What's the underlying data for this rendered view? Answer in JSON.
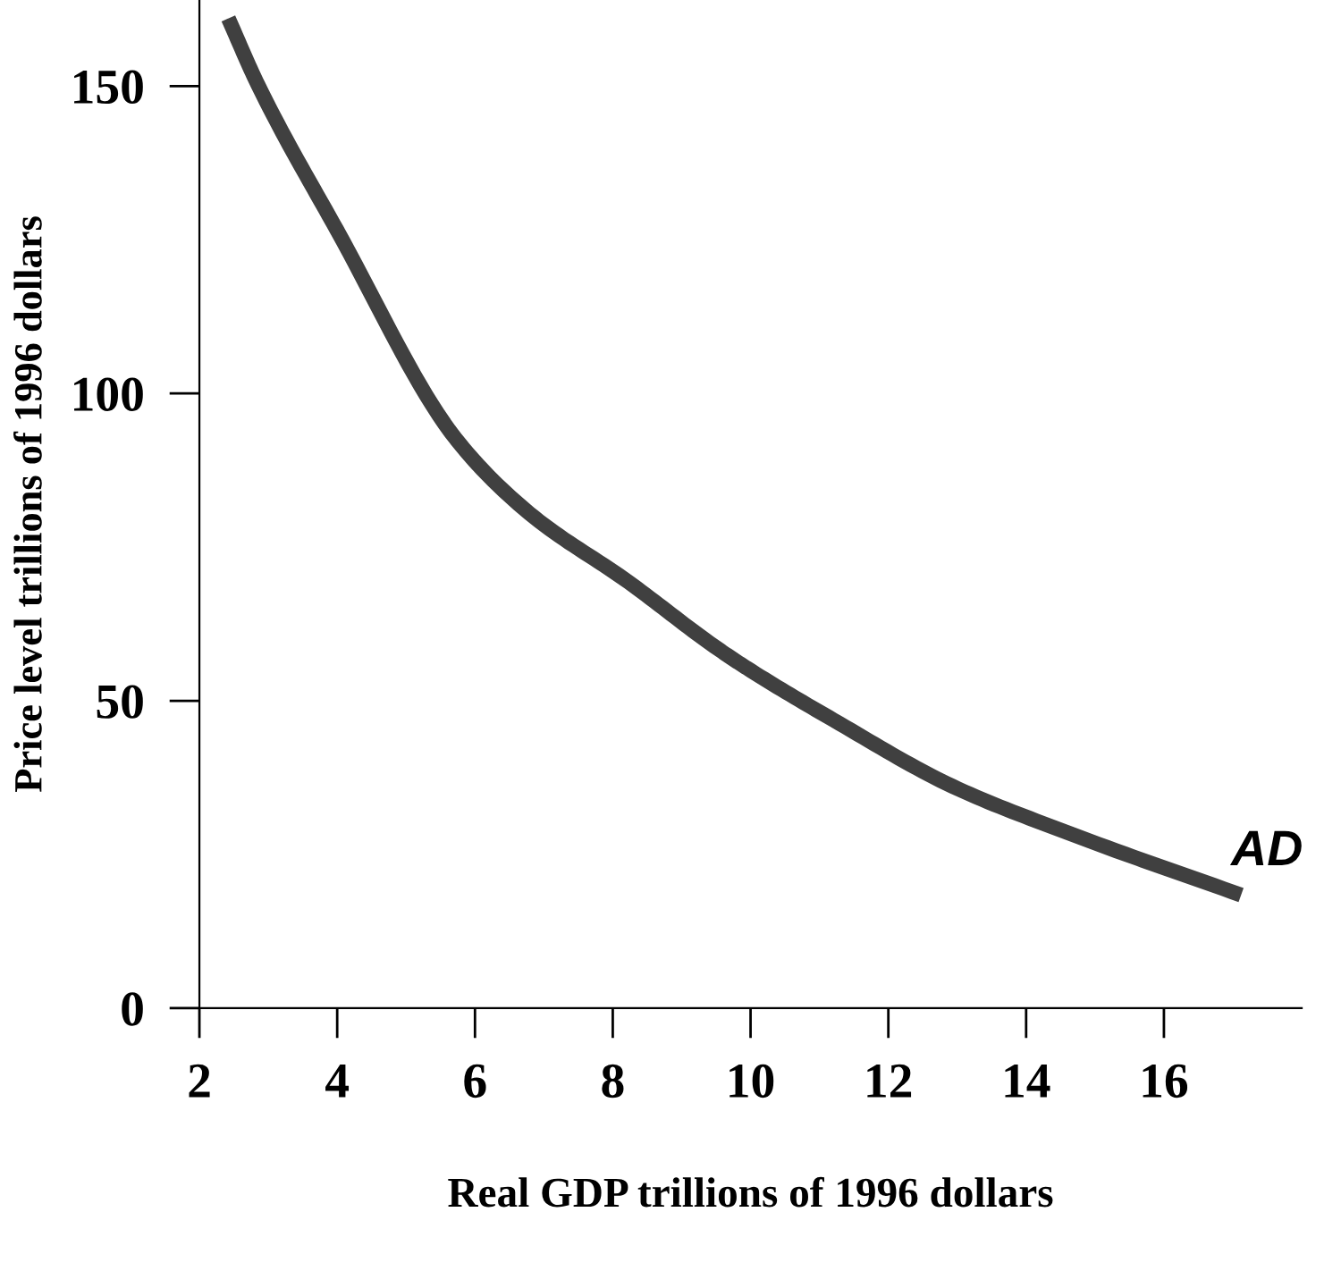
{
  "chart_data": {
    "type": "line",
    "xlabel": "Real GDP trillions of 1996 dollars",
    "ylabel": "Price level trillions of 1996 dollars",
    "series": [
      {
        "color": "#404040",
        "x": [
          2.42,
          2.85,
          4.0,
          5.73,
          6.79,
          8.23,
          9.47,
          9.95,
          11.2,
          12.93,
          14.66,
          17.12
        ],
        "values": [
          161,
          150.2,
          126.5,
          92.5,
          80.5,
          69.3,
          58.9,
          55.3,
          46.9,
          36.1,
          28.3,
          18.4
        ]
      }
    ],
    "annotations": [
      {
        "text": "AD",
        "x": 17.12,
        "y": 18.4
      }
    ],
    "xlim": [
      2,
      18
    ],
    "xticks": [
      2,
      4,
      6,
      8,
      10,
      12,
      14,
      16
    ],
    "ylim": [
      0,
      164
    ],
    "yticks": [
      0,
      50,
      100,
      150
    ],
    "grid": false,
    "legend": false,
    "marker": "none",
    "line_style": "solid"
  }
}
